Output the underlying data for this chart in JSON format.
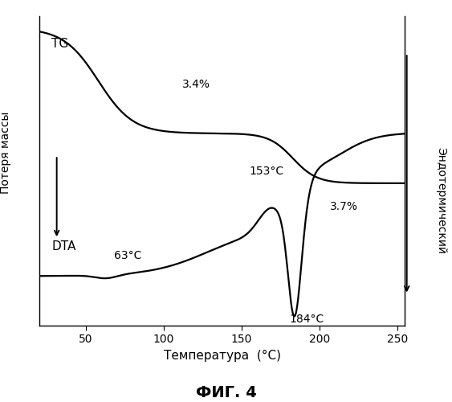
{
  "title": "ФИГ. 4",
  "xlabel": "Температура  (°C)",
  "ylabel_left": "Потеря массы",
  "ylabel_right": "Эндотермический",
  "xlim": [
    20,
    255
  ],
  "ylim": [
    0,
    1
  ],
  "background_color": "#ffffff",
  "annotation_34": "3.4%",
  "annotation_37": "3.7%",
  "annotation_153": "153°C",
  "annotation_184": "184°C",
  "annotation_63": "63°C",
  "label_TG": "TG",
  "label_DTA": "DTA",
  "linewidth": 1.6,
  "line_color": "#000000",
  "xticks": [
    50,
    100,
    150,
    200,
    250
  ]
}
